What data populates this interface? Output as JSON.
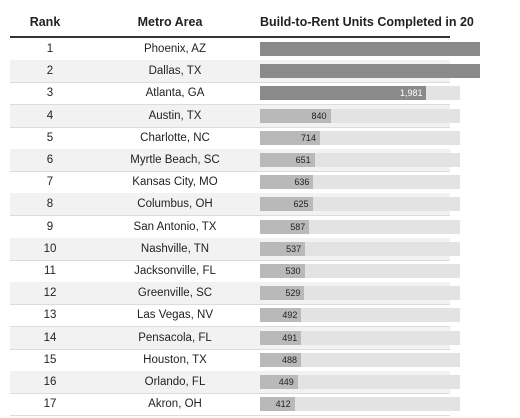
{
  "table": {
    "headers": {
      "rank": "Rank",
      "metro": "Metro Area",
      "units": "Build-to-Rent Units Completed in 20"
    }
  },
  "chart_data": {
    "type": "bar",
    "orientation": "horizontal",
    "xlim": [
      0,
      2380
    ],
    "colors": {
      "bar_dark": "#8a8a8a",
      "bar_light": "#b9b9b9",
      "track": "#e3e3e3"
    },
    "rows": [
      {
        "rank": "1",
        "metro": "Phoenix, AZ",
        "value": null
      },
      {
        "rank": "2",
        "metro": "Dallas, TX",
        "value": null
      },
      {
        "rank": "3",
        "metro": "Atlanta, GA",
        "value": 1981,
        "label": "1,981"
      },
      {
        "rank": "4",
        "metro": "Austin, TX",
        "value": 840,
        "label": "840"
      },
      {
        "rank": "5",
        "metro": "Charlotte, NC",
        "value": 714,
        "label": "714"
      },
      {
        "rank": "6",
        "metro": "Myrtle Beach, SC",
        "value": 651,
        "label": "651"
      },
      {
        "rank": "7",
        "metro": "Kansas City, MO",
        "value": 636,
        "label": "636"
      },
      {
        "rank": "8",
        "metro": "Columbus, OH",
        "value": 625,
        "label": "625"
      },
      {
        "rank": "9",
        "metro": "San Antonio, TX",
        "value": 587,
        "label": "587"
      },
      {
        "rank": "10",
        "metro": "Nashville, TN",
        "value": 537,
        "label": "537"
      },
      {
        "rank": "11",
        "metro": "Jacksonville, FL",
        "value": 530,
        "label": "530"
      },
      {
        "rank": "12",
        "metro": "Greenville, SC",
        "value": 529,
        "label": "529"
      },
      {
        "rank": "13",
        "metro": "Las Vegas, NV",
        "value": 492,
        "label": "492"
      },
      {
        "rank": "14",
        "metro": "Pensacola, FL",
        "value": 491,
        "label": "491"
      },
      {
        "rank": "15",
        "metro": "Houston, TX",
        "value": 488,
        "label": "488"
      },
      {
        "rank": "16",
        "metro": "Orlando, FL",
        "value": 449,
        "label": "449"
      },
      {
        "rank": "17",
        "metro": "Akron, OH",
        "value": 412,
        "label": "412"
      }
    ]
  }
}
